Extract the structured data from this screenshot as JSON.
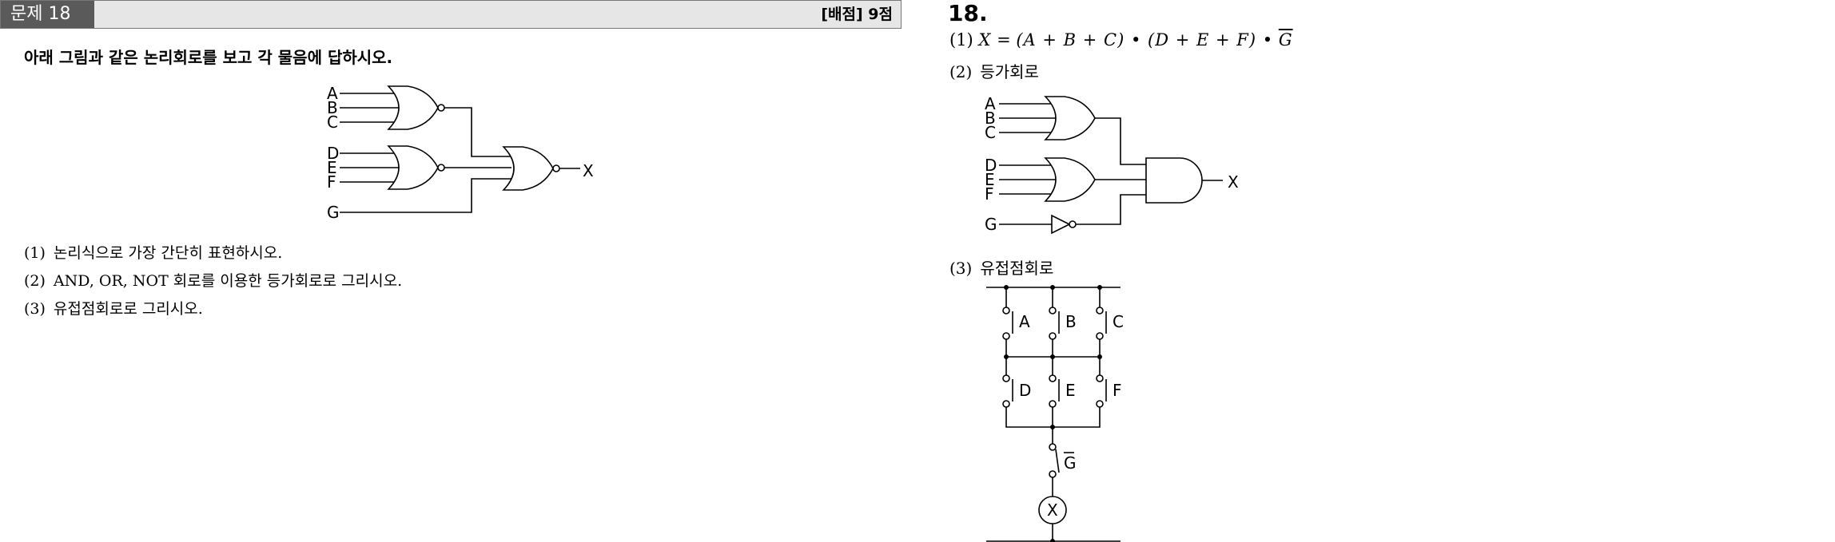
{
  "question": {
    "number_label": "문제 18",
    "score_label": "[배점] 9점",
    "intro": "아래 그림과 같은 논리회로를 보고 각 물음에 답하시오.",
    "circuit": {
      "inputs": [
        "A",
        "B",
        "C",
        "D",
        "E",
        "F",
        "G"
      ],
      "output": "X"
    },
    "items": [
      {
        "tag": "(1)",
        "text": "논리식으로 가장 간단히 표현하시오."
      },
      {
        "tag": "(2)",
        "text": "AND, OR, NOT 회로를 이용한 등가회로로 그리시오."
      },
      {
        "tag": "(3)",
        "text": "유접점회로로 그리시오."
      }
    ]
  },
  "answer": {
    "title": "18.",
    "part1": {
      "tag": "(1)",
      "lhs": "X",
      "expr": "(A + B + C) • (D + E + F) •",
      "overlined": "G"
    },
    "part2": {
      "tag": "(2)",
      "text": "등가회로",
      "circuit": {
        "inputs": [
          "A",
          "B",
          "C",
          "D",
          "E",
          "F",
          "G"
        ],
        "output": "X"
      }
    },
    "part3": {
      "tag": "(3)",
      "text": "유접점회로",
      "contacts_row1": [
        "A",
        "B",
        "C"
      ],
      "contacts_row2": [
        "D",
        "E",
        "F"
      ],
      "contact_b": "G",
      "relay": "X"
    }
  }
}
